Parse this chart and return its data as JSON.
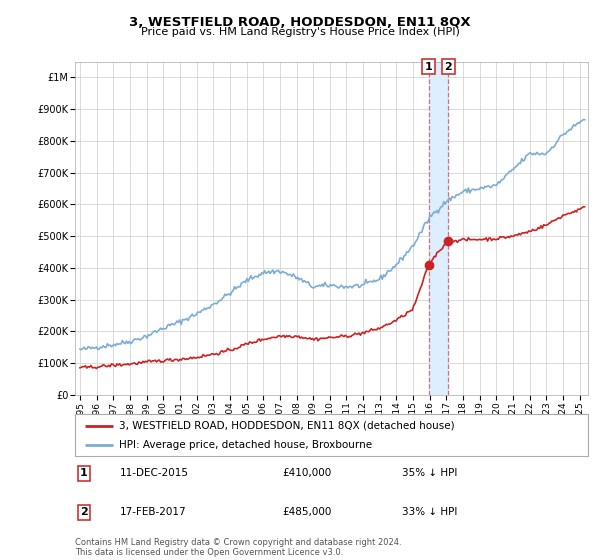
{
  "title": "3, WESTFIELD ROAD, HODDESDON, EN11 8QX",
  "subtitle": "Price paid vs. HM Land Registry's House Price Index (HPI)",
  "ylim": [
    0,
    1050000
  ],
  "yticks": [
    0,
    100000,
    200000,
    300000,
    400000,
    500000,
    600000,
    700000,
    800000,
    900000,
    1000000
  ],
  "ytick_labels": [
    "£0",
    "£100K",
    "£200K",
    "£300K",
    "£400K",
    "£500K",
    "£600K",
    "£700K",
    "£800K",
    "£900K",
    "£1M"
  ],
  "xlim_start": 1994.7,
  "xlim_end": 2025.5,
  "hpi_color": "#7dadd4",
  "price_color": "#cc2222",
  "shade_color": "#ddeeff",
  "sale1_x": 2015.94,
  "sale1_y": 410000,
  "sale1_date_label": "11-DEC-2015",
  "sale1_price": "£410,000",
  "sale1_pct": "35% ↓ HPI",
  "sale2_x": 2017.12,
  "sale2_y": 485000,
  "sale2_date_label": "17-FEB-2017",
  "sale2_price": "£485,000",
  "sale2_pct": "33% ↓ HPI",
  "legend_label1": "3, WESTFIELD ROAD, HODDESDON, EN11 8QX (detached house)",
  "legend_label2": "HPI: Average price, detached house, Broxbourne",
  "footer1": "Contains HM Land Registry data © Crown copyright and database right 2024.",
  "footer2": "This data is licensed under the Open Government Licence v3.0."
}
